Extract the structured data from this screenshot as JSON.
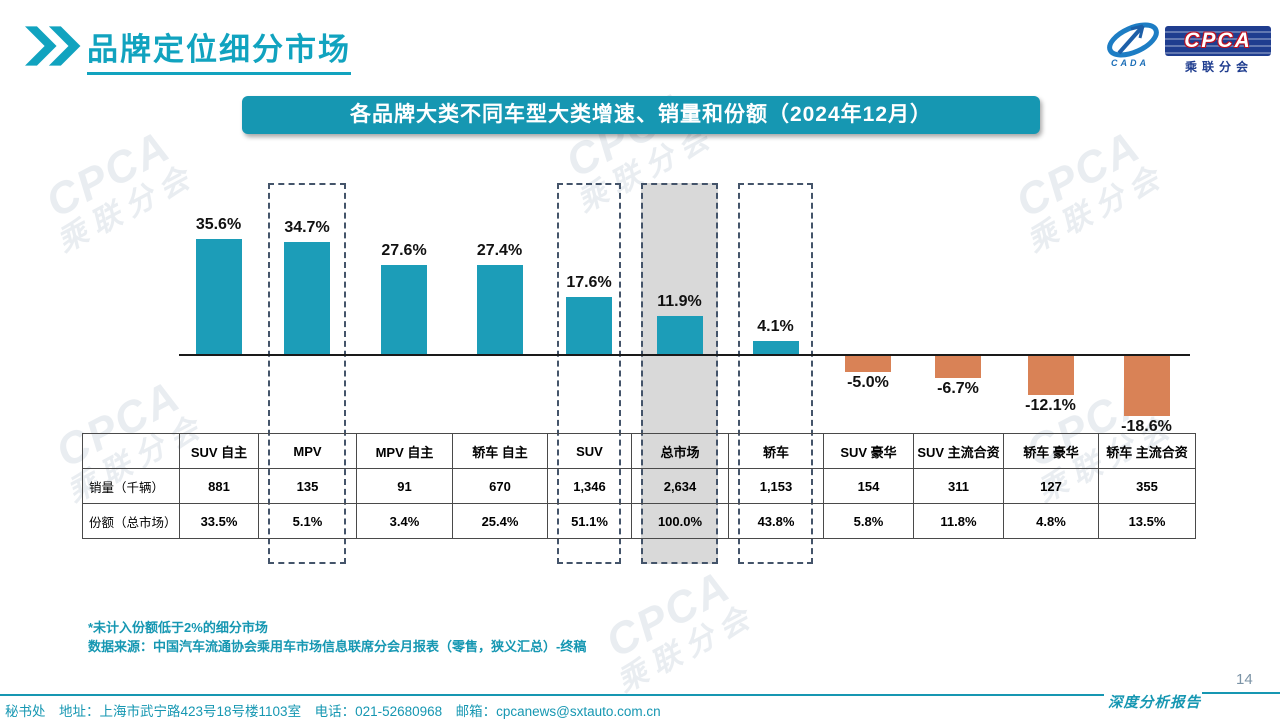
{
  "header": {
    "title": "品牌定位细分市场"
  },
  "logo": {
    "cpca": "CPCA",
    "cada": "CADA",
    "subtitle": "乘联分会"
  },
  "banner": {
    "title": "各品牌大类不同车型大类增速、销量和份额（2024年12月）"
  },
  "chart_data": {
    "type": "bar",
    "title": "各品牌大类不同车型大类增速、销量和份额（2024年12月）",
    "categories": [
      "SUV 自主",
      "MPV",
      "MPV 自主",
      "轿车 自主",
      "SUV",
      "总市场",
      "轿车",
      "SUV 豪华",
      "SUV 主流合资",
      "轿车 豪华",
      "轿车 主流合资"
    ],
    "values": [
      35.6,
      34.7,
      27.6,
      27.4,
      17.6,
      11.9,
      4.1,
      -5.0,
      -6.7,
      -12.1,
      -18.6
    ],
    "value_labels": [
      "35.6%",
      "34.7%",
      "27.6%",
      "27.4%",
      "17.6%",
      "11.9%",
      "4.1%",
      "-5.0%",
      "-6.7%",
      "-12.1%",
      "-18.6%"
    ],
    "unit": "percent",
    "positive_color": "#1c9db8",
    "negative_color": "#d98256",
    "grid": false,
    "highlights": [
      {
        "category": "MPV",
        "style": "dashed"
      },
      {
        "category": "SUV",
        "style": "dashed"
      },
      {
        "category": "总市场",
        "style": "shaded"
      },
      {
        "category": "轿车",
        "style": "dashed"
      }
    ],
    "table": {
      "rows": [
        {
          "label": "销量（千辆）",
          "cells": [
            "881",
            "135",
            "91",
            "670",
            "1,346",
            "2,634",
            "1,153",
            "154",
            "311",
            "127",
            "355"
          ]
        },
        {
          "label": "份额（总市场）",
          "cells": [
            "33.5%",
            "5.1%",
            "3.4%",
            "25.4%",
            "51.1%",
            "100.0%",
            "43.8%",
            "5.8%",
            "11.8%",
            "4.8%",
            "13.5%"
          ]
        }
      ]
    }
  },
  "notes": {
    "line1": "*未计入份额低于2%的细分市场",
    "line2": "数据来源：中国汽车流通协会乘用车市场信息联席分会月报表（零售，狭义汇总）-终稿"
  },
  "footer": {
    "contact": "秘书处　地址：上海市武宁路423号18号楼1103室　电话：021-52680968　邮箱：cpcanews@sxtauto.com.cn",
    "report_label": "深度分析报告",
    "page_number": "14"
  },
  "watermark": {
    "line1": "CPCA",
    "line2": "乘联分会"
  }
}
